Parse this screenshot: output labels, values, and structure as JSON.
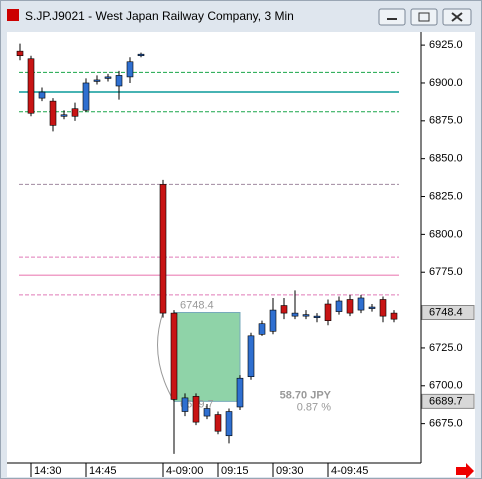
{
  "window_title": "S.JP.J9021 - West Japan Railway Company, 3 Min",
  "chart_data": {
    "type": "candlestick",
    "categories": [
      null,
      "14:30",
      null,
      null,
      null,
      null,
      "14:45",
      null,
      null,
      null,
      null,
      null,
      null,
      "4-09:00",
      null,
      null,
      null,
      null,
      "09:15",
      null,
      null,
      null,
      null,
      "09:30",
      null,
      null,
      null,
      null,
      "4-09:45",
      null,
      null,
      null,
      null,
      null,
      null
    ],
    "open": [
      6921,
      6916,
      6890,
      6888,
      6878,
      6883,
      6882,
      6902,
      6903,
      6898,
      6904,
      6918,
      null,
      6833,
      6748,
      6683,
      6693,
      6680,
      6681,
      6667,
      6686,
      6706,
      6734,
      6736,
      6753,
      6746,
      6746,
      6745,
      6754,
      6749,
      6757,
      6750,
      6751,
      6757,
      6748
    ],
    "high": [
      6926,
      6918,
      6897,
      6890,
      6882,
      6887,
      6903,
      6905,
      6906,
      6908,
      6917,
      6920,
      null,
      6836,
      6750,
      6695,
      6695,
      6688,
      6683,
      6685,
      6707,
      6735,
      6743,
      6758,
      6758,
      6763,
      6750,
      6748,
      6757,
      6759,
      6760,
      6760,
      6754,
      6759,
      6750
    ],
    "low": [
      6915,
      6878,
      6888,
      6868,
      6876,
      6875,
      6881,
      6899,
      6901,
      6889,
      6900,
      6917,
      null,
      6745,
      6655,
      6680,
      6674,
      6678,
      6668,
      6662,
      6684,
      6704,
      6733,
      6734,
      6744,
      6744,
      6744,
      6742,
      6740,
      6747,
      6746,
      6748,
      6749,
      6742,
      6742
    ],
    "close": [
      6918,
      6880,
      6894,
      6872,
      6879,
      6878,
      6900,
      6902,
      6904,
      6905,
      6914,
      6919,
      null,
      6748,
      6691,
      6692,
      6676,
      6685,
      6670,
      6683,
      6705,
      6733,
      6741,
      6750,
      6748,
      6748,
      6747,
      6746,
      6743,
      6756,
      6748,
      6758,
      6752,
      6746,
      6744
    ],
    "up_color": "#2f6fd0",
    "down_color": "#c81414",
    "ylim": [
      6649,
      6933
    ],
    "yticks": [
      {
        "value": 6925,
        "label": "6925.0"
      },
      {
        "value": 6900,
        "label": "6900.0"
      },
      {
        "value": 6875,
        "label": "6875.0"
      },
      {
        "value": 6850,
        "label": "6850.0"
      },
      {
        "value": 6825,
        "label": "6825.0"
      },
      {
        "value": 6800,
        "label": "6800.0"
      },
      {
        "value": 6775,
        "label": "6775.0"
      },
      {
        "value": 6750,
        "label": "6750.0"
      },
      {
        "value": 6725,
        "label": "6725.0"
      },
      {
        "value": 6700,
        "label": "6700.0"
      },
      {
        "value": 6675,
        "label": "6675.0"
      }
    ],
    "levels": [
      {
        "value": 6907,
        "color": "#1aa64a",
        "style": "dashed"
      },
      {
        "value": 6894,
        "color": "#0a9a9a",
        "style": "solid"
      },
      {
        "value": 6881,
        "color": "#1aa64a",
        "style": "dashed"
      },
      {
        "value": 6833,
        "color": "#a08aa0",
        "style": "dashed"
      },
      {
        "value": 6785,
        "color": "#e07ab8",
        "style": "dashed"
      },
      {
        "value": 6773,
        "color": "#f0a0c8",
        "style": "solid"
      },
      {
        "value": 6760,
        "color": "#e07ab8",
        "style": "dashed"
      }
    ],
    "price_labels": [
      {
        "value": 6748.4,
        "label": "6748.4"
      },
      {
        "value": 6689.7,
        "label": "6689.7"
      }
    ],
    "measure": {
      "start": {
        "value": 6748.4,
        "label": "6748.4"
      },
      "end": {
        "value": 6689.7,
        "label": "6689.7"
      },
      "change": "58.70 JPY",
      "percent": "0.87 %"
    }
  }
}
